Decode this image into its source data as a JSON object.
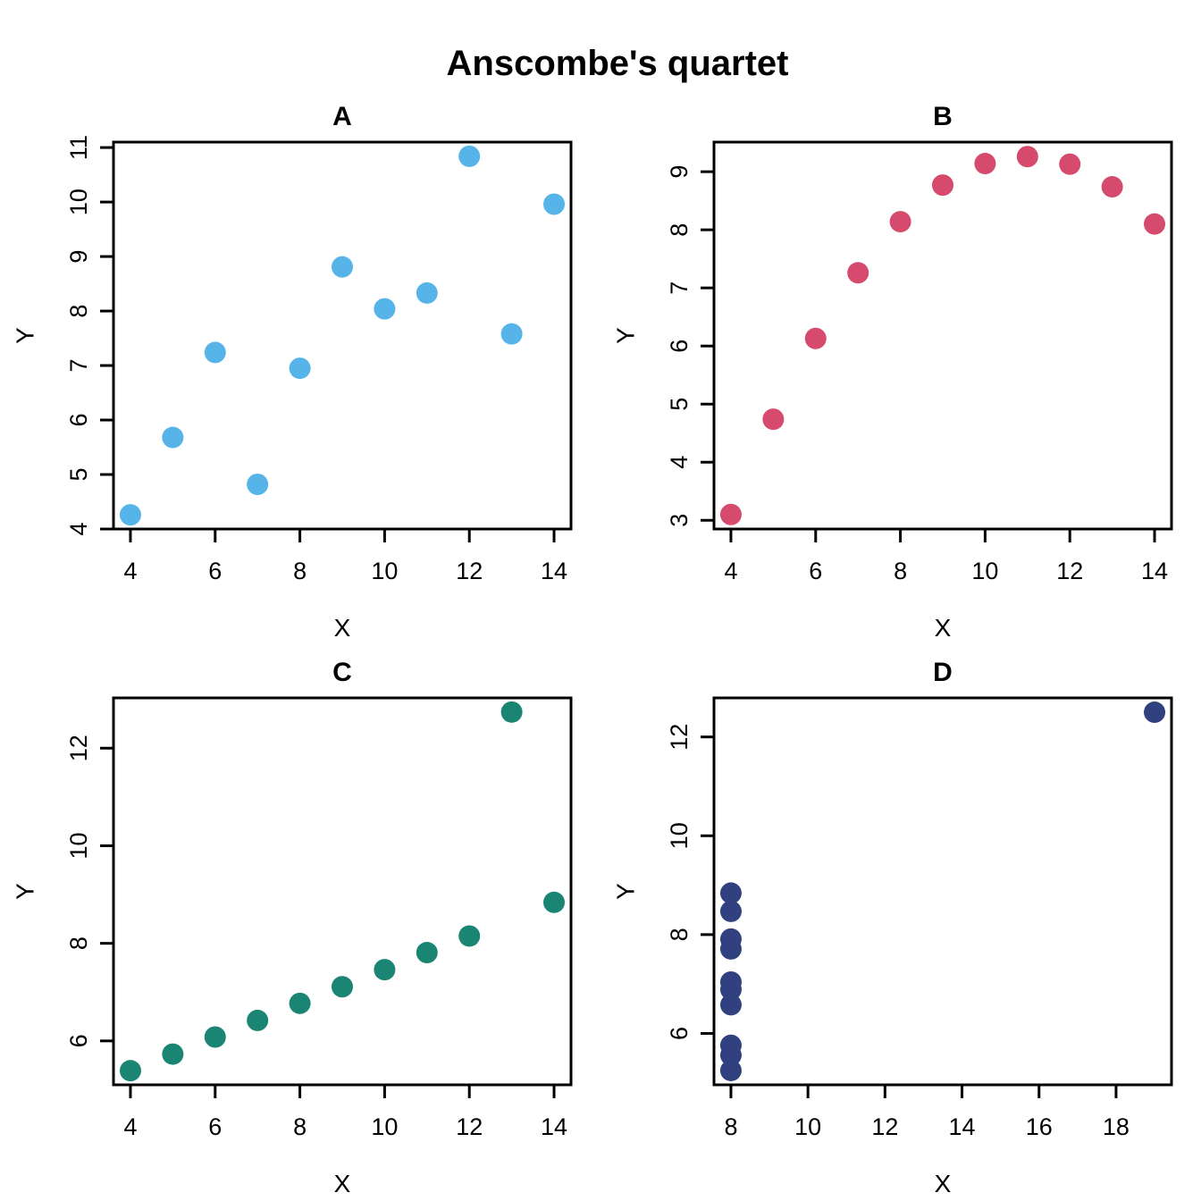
{
  "title": "Anscombe's quartet",
  "background_color": "#ffffff",
  "frame_color": "#000000",
  "text_color": "#000000",
  "chart_data": [
    {
      "type": "scatter",
      "panel": "A",
      "title": "A",
      "xlabel": "X",
      "ylabel": "Y",
      "point_color": "#56B4E9",
      "x": [
        10,
        8,
        13,
        9,
        11,
        14,
        6,
        4,
        12,
        7,
        5
      ],
      "y": [
        8.04,
        6.95,
        7.58,
        8.81,
        8.33,
        9.96,
        7.24,
        4.26,
        10.84,
        4.82,
        5.68
      ],
      "xlim": [
        3.6,
        14.4
      ],
      "ylim": [
        4.0,
        11.1
      ],
      "xticks": [
        4,
        6,
        8,
        10,
        12,
        14
      ],
      "yticks": [
        4,
        5,
        6,
        7,
        8,
        9,
        10,
        11
      ],
      "grid": false,
      "legend": "none"
    },
    {
      "type": "scatter",
      "panel": "B",
      "title": "B",
      "xlabel": "X",
      "ylabel": "Y",
      "point_color": "#D64A6E",
      "x": [
        10,
        8,
        13,
        9,
        11,
        14,
        6,
        4,
        12,
        7,
        5
      ],
      "y": [
        9.14,
        8.14,
        8.74,
        8.77,
        9.26,
        8.1,
        6.13,
        3.1,
        9.13,
        7.26,
        4.74
      ],
      "xlim": [
        3.6,
        14.4
      ],
      "ylim": [
        2.85,
        9.51
      ],
      "xticks": [
        4,
        6,
        8,
        10,
        12,
        14
      ],
      "yticks": [
        3,
        4,
        5,
        6,
        7,
        8,
        9
      ],
      "grid": false,
      "legend": "none"
    },
    {
      "type": "scatter",
      "panel": "C",
      "title": "C",
      "xlabel": "X",
      "ylabel": "Y",
      "point_color": "#1B8573",
      "x": [
        10,
        8,
        13,
        9,
        11,
        14,
        6,
        4,
        12,
        7,
        5
      ],
      "y": [
        7.46,
        6.77,
        12.74,
        7.11,
        7.81,
        8.84,
        6.08,
        5.39,
        8.15,
        6.42,
        5.73
      ],
      "xlim": [
        3.6,
        14.4
      ],
      "ylim": [
        5.1,
        13.03
      ],
      "xticks": [
        4,
        6,
        8,
        10,
        12,
        14
      ],
      "yticks": [
        6,
        8,
        10,
        12
      ],
      "grid": false,
      "legend": "none"
    },
    {
      "type": "scatter",
      "panel": "D",
      "title": "D",
      "xlabel": "X",
      "ylabel": "Y",
      "point_color": "#31407E",
      "x": [
        8,
        8,
        8,
        8,
        8,
        8,
        8,
        19,
        8,
        8,
        8
      ],
      "y": [
        6.58,
        5.76,
        7.71,
        8.84,
        8.47,
        7.04,
        5.25,
        12.5,
        5.56,
        7.91,
        6.89
      ],
      "xlim": [
        7.56,
        19.44
      ],
      "ylim": [
        4.96,
        12.79
      ],
      "xticks": [
        8,
        10,
        12,
        14,
        16,
        18
      ],
      "yticks": [
        6,
        8,
        10,
        12
      ],
      "grid": false,
      "legend": "none"
    }
  ]
}
